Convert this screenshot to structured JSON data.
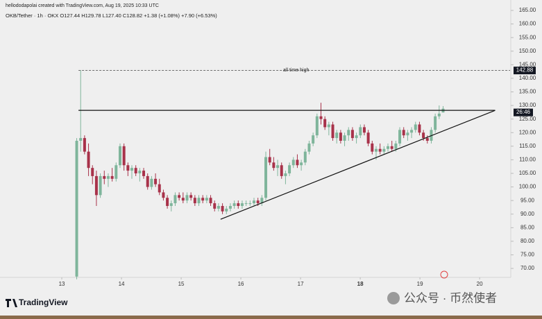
{
  "chart_data": {
    "type": "candlestick",
    "credit": "hellododapolai created with TradingView.com, Aug 19, 2025 10:33 UTC",
    "symbol_line": "OKB/Tether · 1h · OKX   O127.44  H129.78  L127.40  C128.82  +1.38 (+1.08%)  +7.90 (+6.53%)",
    "annotation": "all time high",
    "ath": {
      "value": 142.88,
      "label": "142.88",
      "x": 13.28
    },
    "countdown": "26:46",
    "resistance": {
      "value": 128.2,
      "x": [
        13.28,
        20.26
      ]
    },
    "support_line": {
      "x": [
        15.66,
        20.26
      ],
      "y": [
        88.1,
        128.2
      ]
    },
    "logo": "TradingView",
    "watermark": "公众号 · 币然使者",
    "up_color": "#7fb59b",
    "down_color": "#a8324a",
    "xlim": [
      11.965,
      20.51
    ],
    "xticks": [
      13,
      14,
      15,
      16,
      17,
      18,
      19,
      20
    ],
    "ylim": [
      66.7,
      168.83
    ],
    "yticks": [
      {
        "value": 70,
        "label": "70.00"
      },
      {
        "value": 75,
        "label": "75.00"
      },
      {
        "value": 80,
        "label": "80.00"
      },
      {
        "value": 85,
        "label": "85.00"
      },
      {
        "value": 90,
        "label": "90.00"
      },
      {
        "value": 95,
        "label": "95.00"
      },
      {
        "value": 100,
        "label": "100.00"
      },
      {
        "value": 105,
        "label": "105.00"
      },
      {
        "value": 110,
        "label": "110.00"
      },
      {
        "value": 115,
        "label": "115.00"
      },
      {
        "value": 120,
        "label": "120.00"
      },
      {
        "value": 125,
        "label": "125.00"
      },
      {
        "value": 130,
        "label": "130.00"
      },
      {
        "value": 135,
        "label": "135.00"
      },
      {
        "value": 140,
        "label": "140.00"
      },
      {
        "value": 145,
        "label": "145.00"
      },
      {
        "value": 150,
        "label": "150.00"
      },
      {
        "value": 155,
        "label": "155.00"
      },
      {
        "value": 160,
        "label": "160.00"
      },
      {
        "value": 165,
        "label": "165.00"
      }
    ],
    "x": [
      13.25,
      13.316,
      13.382,
      13.448,
      13.514,
      13.58,
      13.646,
      13.712,
      13.778,
      13.844,
      13.91,
      13.976,
      14.042,
      14.108,
      14.174,
      14.24,
      14.306,
      14.372,
      14.438,
      14.504,
      14.57,
      14.636,
      14.702,
      14.768,
      14.834,
      14.9,
      14.966,
      15.032,
      15.098,
      15.164,
      15.23,
      15.296,
      15.362,
      15.428,
      15.494,
      15.56,
      15.626,
      15.692,
      15.758,
      15.824,
      15.89,
      15.956,
      16.022,
      16.088,
      16.154,
      16.22,
      16.286,
      16.352,
      16.418,
      16.484,
      16.55,
      16.616,
      16.682,
      16.748,
      16.814,
      16.88,
      16.946,
      17.012,
      17.078,
      17.144,
      17.21,
      17.276,
      17.342,
      17.408,
      17.474,
      17.54,
      17.606,
      17.672,
      17.738,
      17.804,
      17.87,
      17.936,
      18.002,
      18.068,
      18.134,
      18.2,
      18.266,
      18.332,
      18.398,
      18.464,
      18.53,
      18.596,
      18.662,
      18.728,
      18.794,
      18.86,
      18.926,
      18.992,
      19.058,
      19.124,
      19.19,
      19.256,
      19.322,
      19.388
    ],
    "open": [
      67,
      117,
      118,
      113,
      107,
      104,
      97,
      104,
      103,
      104,
      103,
      108,
      115,
      108,
      106,
      107,
      105,
      106,
      104,
      100,
      103,
      101,
      98,
      96,
      93,
      94,
      97,
      96,
      95,
      97,
      96,
      94,
      96,
      95,
      96,
      94,
      92,
      93,
      91,
      92,
      93,
      94,
      93,
      94,
      94,
      94,
      95,
      94,
      96,
      111,
      109,
      107,
      108,
      104,
      105,
      108,
      110,
      108,
      109,
      113,
      116,
      119,
      126,
      125,
      122,
      123,
      118,
      120,
      117,
      119,
      121,
      118,
      119,
      122,
      120,
      116,
      113,
      114,
      113,
      114,
      115,
      114,
      116,
      121,
      119,
      120,
      121,
      123,
      120,
      118,
      117,
      121,
      126,
      127.44
    ],
    "high": [
      118,
      143,
      119,
      116,
      108,
      106,
      105,
      106,
      105,
      107,
      109,
      116,
      116,
      109,
      108,
      108,
      107,
      107,
      105,
      104,
      105,
      103,
      99,
      97,
      95,
      98,
      98,
      98,
      98,
      98,
      97,
      97,
      97,
      97,
      97,
      95,
      94,
      94,
      93,
      94,
      95,
      95,
      95,
      95,
      95,
      96,
      96,
      97,
      113,
      114,
      111,
      110,
      109,
      106,
      109,
      111,
      112,
      110,
      114,
      117,
      120,
      127,
      131,
      126,
      124,
      124,
      121,
      121,
      120,
      122,
      122,
      120,
      123,
      123,
      121,
      117,
      115,
      116,
      115,
      116,
      117,
      117,
      122,
      122,
      121,
      122,
      124,
      124,
      121,
      119,
      122,
      127,
      130,
      129.78
    ],
    "low": [
      66,
      113,
      112,
      104,
      101,
      93,
      96,
      101,
      100,
      102,
      102,
      107,
      106,
      104,
      103,
      104,
      102,
      103,
      99,
      99,
      100,
      97,
      95,
      92,
      91,
      93,
      95,
      94,
      94,
      95,
      93,
      93,
      94,
      94,
      93,
      91,
      91,
      90,
      90,
      91,
      92,
      92,
      92,
      93,
      93,
      93,
      93,
      93,
      95,
      108,
      106,
      104,
      103,
      101,
      104,
      107,
      107,
      106,
      108,
      112,
      115,
      118,
      123,
      121,
      119,
      117,
      116,
      116,
      115,
      117,
      117,
      116,
      118,
      119,
      115,
      112,
      110,
      112,
      112,
      113,
      113,
      113,
      115,
      118,
      117,
      118,
      120,
      119,
      117,
      116,
      116,
      120,
      125,
      127.4
    ],
    "close": [
      117,
      118,
      113,
      107,
      104,
      97,
      104,
      103,
      104,
      103,
      108,
      115,
      108,
      106,
      107,
      105,
      106,
      104,
      100,
      103,
      101,
      98,
      96,
      93,
      94,
      97,
      96,
      95,
      97,
      96,
      94,
      96,
      95,
      96,
      94,
      92,
      93,
      91,
      92,
      93,
      94,
      93,
      94,
      94,
      94,
      95,
      94,
      96,
      111,
      109,
      107,
      108,
      104,
      105,
      108,
      110,
      108,
      109,
      113,
      116,
      119,
      126,
      125,
      122,
      123,
      118,
      120,
      117,
      119,
      121,
      118,
      119,
      122,
      120,
      116,
      113,
      114,
      113,
      114,
      115,
      114,
      116,
      121,
      119,
      120,
      121,
      123,
      120,
      118,
      117,
      121,
      126,
      127,
      128.82
    ]
  }
}
